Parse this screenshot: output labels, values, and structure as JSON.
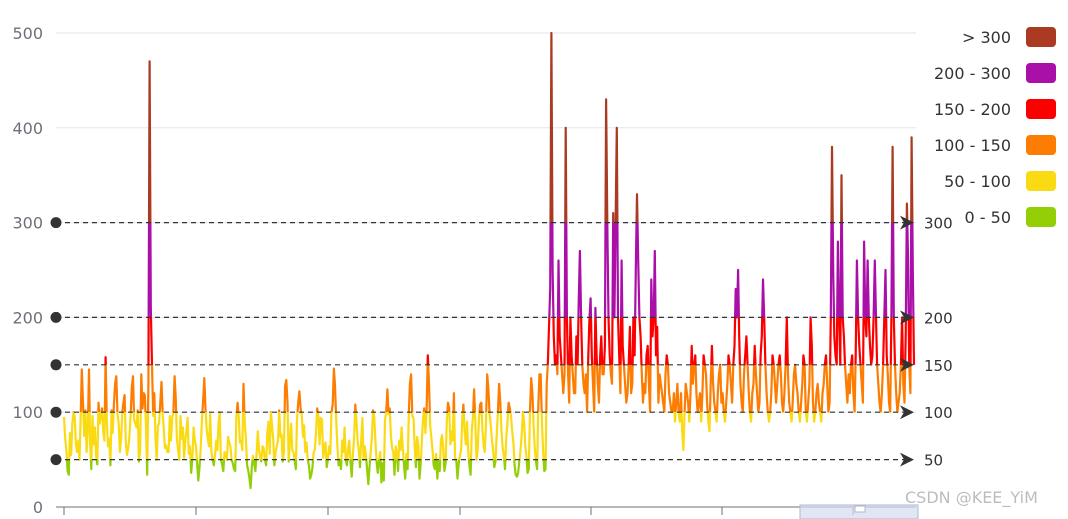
{
  "watermark": "CSDN @KEE_YiM",
  "chart_data": {
    "type": "line",
    "title": "",
    "xlabel": "",
    "ylabel": "",
    "ylim": [
      0,
      500
    ],
    "y_ticks": [
      "0",
      "100",
      "200",
      "300",
      "400",
      "500"
    ],
    "grid": true,
    "legend_position": "top-right",
    "pieces": [
      {
        "label": "> 300",
        "min": 300,
        "max": 500,
        "color": "#aa3a22"
      },
      {
        "label": "200 - 300",
        "min": 200,
        "max": 300,
        "color": "#aa0fa8"
      },
      {
        "label": "150 - 200",
        "min": 150,
        "max": 200,
        "color": "#fc0000"
      },
      {
        "label": "100 - 150",
        "min": 100,
        "max": 150,
        "color": "#fc7d02"
      },
      {
        "label": "50 - 100",
        "min": 50,
        "max": 100,
        "color": "#fadb13"
      },
      {
        "label": "0 - 50",
        "min": 0,
        "max": 50,
        "color": "#93ce07"
      }
    ],
    "mark_lines": [
      {
        "value": 50,
        "label": "50"
      },
      {
        "value": 100,
        "label": "100"
      },
      {
        "value": 150,
        "label": "150"
      },
      {
        "value": 200,
        "label": "200"
      },
      {
        "value": 300,
        "label": "300"
      }
    ],
    "series": [
      {
        "values": [
          95,
          72,
          60,
          38,
          34,
          78,
          55,
          88,
          100,
          95,
          66,
          58,
          70,
          50,
          92,
          145,
          110,
          75,
          102,
          58,
          80,
          145,
          64,
          40,
          96,
          66,
          84,
          54,
          45,
          110,
          88,
          96,
          104,
          80,
          70,
          158,
          92,
          64,
          72,
          44,
          102,
          78,
          108,
          130,
          138,
          98,
          88,
          58,
          72,
          100,
          110,
          118,
          68,
          55,
          62,
          74,
          96,
          126,
          138,
          92,
          88,
          84,
          102,
          48,
          58,
          140,
          104,
          120,
          118,
          85,
          34,
          130,
          470,
          210,
          150,
          96,
          120,
          72,
          50,
          86,
          88,
          110,
          132,
          98,
          80,
          62,
          65,
          58,
          58,
          96,
          70,
          94,
          100,
          138,
          116,
          72,
          60,
          50,
          96,
          72,
          84,
          52,
          70,
          80,
          94,
          56,
          64,
          36,
          52,
          84,
          70,
          64,
          46,
          28,
          42,
          62,
          90,
          112,
          136,
          104,
          82,
          72,
          64,
          98,
          58,
          50,
          44,
          55,
          70,
          60,
          88,
          100,
          50,
          45,
          38,
          58,
          54,
          50,
          74,
          68,
          64,
          50,
          46,
          40,
          38,
          96,
          110,
          94,
          68,
          70,
          60,
          130,
          90,
          72,
          44,
          38,
          30,
          20,
          42,
          54,
          46,
          38,
          56,
          80,
          60,
          52,
          48,
          64,
          62,
          50,
          44,
          78,
          90,
          56,
          100,
          86,
          72,
          44,
          58,
          64,
          70,
          102,
          74,
          76,
          48,
          58,
          128,
          134,
          110,
          48,
          68,
          88,
          60,
          58,
          50,
          40,
          92,
          110,
          122,
          104,
          96,
          74,
          86,
          58,
          68,
          50,
          44,
          30,
          34,
          42,
          58,
          60,
          78,
          104,
          96,
          66,
          94,
          92,
          52,
          62,
          68,
          42,
          50,
          64,
          56,
          100,
          108,
          146,
          128,
          92,
          64,
          44,
          50,
          40,
          70,
          58,
          84,
          50,
          44,
          62,
          70,
          48,
          32,
          56,
          72,
          108,
          92,
          70,
          60,
          42,
          70,
          94,
          50,
          64,
          54,
          40,
          24,
          42,
          58,
          74,
          102,
          94,
          68,
          46,
          36,
          48,
          58,
          26,
          46,
          28,
          92,
          100,
          124,
          98,
          104,
          76,
          62,
          58,
          34,
          64,
          56,
          38,
          70,
          60,
          84,
          62,
          44,
          30,
          56,
          40,
          98,
          130,
          140,
          96,
          94,
          64,
          42,
          74,
          66,
          30,
          44,
          68,
          92,
          104,
          78,
          102,
          160,
          130,
          86,
          74,
          60,
          44,
          40,
          56,
          30,
          48,
          38,
          70,
          76,
          62,
          38,
          46,
          90,
          110,
          104,
          66,
          80,
          70,
          120,
          50,
          50,
          30,
          46,
          54,
          60,
          94,
          108,
          80,
          66,
          90,
          60,
          44,
          34,
          80,
          96,
          124,
          90,
          50,
          60,
          92,
          108,
          110,
          80,
          64,
          58,
          90,
          140,
          124,
          98,
          86,
          70,
          60,
          42,
          48,
          76,
          100,
          130,
          110,
          80,
          62,
          54,
          40,
          72,
          88,
          110,
          104,
          96,
          80,
          68,
          44,
          34,
          32,
          36,
          48,
          60,
          76,
          100,
          90,
          64,
          54,
          36,
          40,
          102,
          136,
          120,
          86,
          62,
          48,
          40,
          106,
          140,
          140,
          90,
          60,
          38,
          40,
          130,
          150,
          190,
          230,
          500,
          250,
          180,
          150,
          160,
          140,
          260,
          180,
          160,
          140,
          120,
          140,
          400,
          200,
          140,
          110,
          200,
          160,
          140,
          120,
          120,
          180,
          150,
          220,
          270,
          200,
          150,
          130,
          120,
          140,
          100,
          160,
          200,
          220,
          160,
          130,
          100,
          210,
          160,
          130,
          110,
          160,
          180,
          140,
          140,
          170,
          430,
          300,
          200,
          160,
          140,
          130,
          310,
          200,
          300,
          400,
          200,
          160,
          120,
          260,
          170,
          150,
          130,
          110,
          120,
          150,
          190,
          120,
          130,
          200,
          160,
          250,
          330,
          260,
          200,
          180,
          140,
          110,
          130,
          120,
          160,
          170,
          130,
          100,
          240,
          180,
          200,
          270,
          160,
          190,
          110,
          140,
          130,
          120,
          110,
          100,
          140,
          160,
          150,
          120,
          110,
          100,
          100,
          120,
          90,
          110,
          130,
          100,
          90,
          120,
          80,
          60,
          100,
          130,
          120,
          110,
          90,
          120,
          170,
          130,
          150,
          160,
          120,
          100,
          110,
          120,
          90,
          120,
          160,
          150,
          140,
          110,
          90,
          80,
          130,
          170,
          130,
          110,
          100,
          90,
          120,
          140,
          150,
          110,
          120,
          100,
          90,
          110,
          130,
          160,
          150,
          130,
          110,
          150,
          170,
          230,
          200,
          250,
          180,
          130,
          110,
          100,
          140,
          160,
          180,
          150,
          120,
          100,
          90,
          120,
          130,
          170,
          140,
          120,
          100,
          110,
          160,
          180,
          240,
          200,
          150,
          120,
          100,
          90,
          100,
          120,
          160,
          150,
          130,
          110,
          130,
          150,
          160,
          140,
          110,
          100,
          120,
          150,
          200,
          140,
          110,
          100,
          90,
          110,
          140,
          150,
          130,
          120,
          100,
          90,
          110,
          130,
          160,
          150,
          100,
          90,
          110,
          130,
          200,
          170,
          110,
          90,
          100,
          120,
          130,
          110,
          100,
          90,
          120,
          130,
          150,
          160,
          130,
          100,
          110,
          200,
          380,
          250,
          180,
          160,
          150,
          280,
          200,
          150,
          350,
          200,
          180,
          150,
          130,
          110,
          140,
          120,
          150,
          160,
          120,
          100,
          160,
          260,
          200,
          170,
          150,
          130,
          110,
          280,
          200,
          180,
          260,
          200,
          170,
          150,
          160,
          200,
          260,
          200,
          150,
          130,
          110,
          100,
          120,
          150,
          200,
          250,
          160,
          140,
          110,
          100,
          200,
          380,
          200,
          150,
          120,
          100,
          110,
          120,
          150,
          200,
          130,
          110,
          180,
          320,
          260,
          150,
          120,
          390,
          250,
          150
        ]
      }
    ]
  }
}
